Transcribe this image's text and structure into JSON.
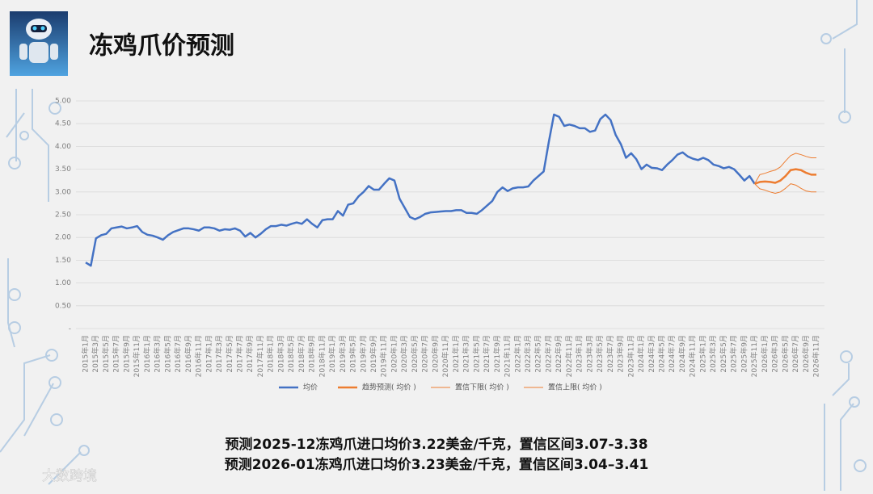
{
  "title": "冻鸡爪价预测",
  "notes": [
    "预测2025-12冻鸡爪进口均价3.22美金/千克，置信区间3.07-3.38",
    "预测2026-01冻鸡爪进口均价3.23美金/千克，置信区间3.04–3.41"
  ],
  "watermark": "大数跨境",
  "chart_data": {
    "type": "line",
    "categories": [
      "2015年1月",
      null,
      "2015年3月",
      null,
      "2015年5月",
      null,
      "2015年7月",
      null,
      "2015年9月",
      null,
      "2015年11月",
      null,
      "2016年1月",
      null,
      "2016年3月",
      null,
      "2016年5月",
      null,
      "2016年7月",
      null,
      "2016年9月",
      null,
      "2016年11月",
      null,
      "2017年1月",
      null,
      "2017年3月",
      null,
      "2017年5月",
      null,
      "2017年7月",
      null,
      "2017年9月",
      null,
      "2017年11月",
      null,
      "2018年1月",
      null,
      "2018年3月",
      null,
      "2018年5月",
      null,
      "2018年7月",
      null,
      "2018年9月",
      null,
      "2018年11月",
      null,
      "2019年1月",
      null,
      "2019年3月",
      null,
      "2019年5月",
      null,
      "2019年7月",
      null,
      "2019年9月",
      null,
      "2019年11月",
      null,
      "2020年1月",
      null,
      "2020年3月",
      null,
      "2020年5月",
      null,
      "2020年7月",
      null,
      "2020年9月",
      null,
      "2020年11月",
      null,
      "2021年1月",
      null,
      "2021年3月",
      null,
      "2021年5月",
      null,
      "2021年7月",
      null,
      "2021年9月",
      null,
      "2021年11月",
      null,
      "2022年1月",
      null,
      "2022年3月",
      null,
      "2022年5月",
      null,
      "2022年7月",
      null,
      "2022年9月",
      null,
      "2022年11月",
      null,
      "2023年1月",
      null,
      "2023年3月",
      null,
      "2023年5月",
      null,
      "2023年7月",
      null,
      "2023年9月",
      null,
      "2023年11月",
      null,
      "2024年1月",
      null,
      "2024年3月",
      null,
      "2024年5月",
      null,
      "2024年7月",
      null,
      "2024年9月",
      null,
      "2024年11月",
      null,
      "2025年1月",
      null,
      "2025年3月",
      null,
      "2025年5月",
      null,
      "2025年7月",
      null,
      "2025年9月",
      null,
      "2025年11月",
      null,
      "2026年1月",
      null,
      "2026年3月",
      null,
      "2026年5月",
      null,
      "2026年7月",
      null,
      "2026年9月",
      null,
      "2026年11月"
    ],
    "series": [
      {
        "name": "均价",
        "color": "#4472c4",
        "width": 2.5,
        "values": [
          1.45,
          1.38,
          1.98,
          2.05,
          2.08,
          2.2,
          2.22,
          2.24,
          2.2,
          2.22,
          2.25,
          2.12,
          2.06,
          2.04,
          2.0,
          1.95,
          2.05,
          2.12,
          2.16,
          2.2,
          2.2,
          2.18,
          2.15,
          2.22,
          2.22,
          2.2,
          2.15,
          2.18,
          2.17,
          2.2,
          2.15,
          2.02,
          2.1,
          2.0,
          2.08,
          2.18,
          2.25,
          2.25,
          2.28,
          2.26,
          2.3,
          2.33,
          2.3,
          2.4,
          2.3,
          2.22,
          2.38,
          2.4,
          2.4,
          2.58,
          2.48,
          2.72,
          2.75,
          2.9,
          3.0,
          3.13,
          3.05,
          3.05,
          3.18,
          3.3,
          3.25,
          2.85,
          2.65,
          2.45,
          2.4,
          2.45,
          2.52,
          2.55,
          2.56,
          2.57,
          2.58,
          2.58,
          2.6,
          2.6,
          2.54,
          2.54,
          2.52,
          2.6,
          2.7,
          2.8,
          3.0,
          3.1,
          3.02,
          3.08,
          3.1,
          3.1,
          3.12,
          3.25,
          3.35,
          3.45,
          4.1,
          4.7,
          4.65,
          4.45,
          4.48,
          4.45,
          4.4,
          4.4,
          4.32,
          4.35,
          4.6,
          4.7,
          4.58,
          4.25,
          4.05,
          3.75,
          3.85,
          3.72,
          3.5,
          3.6,
          3.53,
          3.52,
          3.48,
          3.6,
          3.7,
          3.82,
          3.87,
          3.78,
          3.73,
          3.7,
          3.75,
          3.7,
          3.6,
          3.57,
          3.52,
          3.55,
          3.5,
          3.38,
          3.25,
          3.35,
          3.18,
          null,
          null,
          null,
          null,
          null,
          null,
          null,
          null,
          null,
          null,
          null,
          null
        ]
      },
      {
        "name": "趋势预测( 均价 )",
        "color": "#ed7d31",
        "width": 2.5,
        "values": [
          null,
          null,
          null,
          null,
          null,
          null,
          null,
          null,
          null,
          null,
          null,
          null,
          null,
          null,
          null,
          null,
          null,
          null,
          null,
          null,
          null,
          null,
          null,
          null,
          null,
          null,
          null,
          null,
          null,
          null,
          null,
          null,
          null,
          null,
          null,
          null,
          null,
          null,
          null,
          null,
          null,
          null,
          null,
          null,
          null,
          null,
          null,
          null,
          null,
          null,
          null,
          null,
          null,
          null,
          null,
          null,
          null,
          null,
          null,
          null,
          null,
          null,
          null,
          null,
          null,
          null,
          null,
          null,
          null,
          null,
          null,
          null,
          null,
          null,
          null,
          null,
          null,
          null,
          null,
          null,
          null,
          null,
          null,
          null,
          null,
          null,
          null,
          null,
          null,
          null,
          null,
          null,
          null,
          null,
          null,
          null,
          null,
          null,
          null,
          null,
          null,
          null,
          null,
          null,
          null,
          null,
          null,
          null,
          null,
          null,
          null,
          null,
          null,
          null,
          null,
          null,
          null,
          null,
          null,
          null,
          null,
          null,
          null,
          null,
          null,
          null,
          null,
          null,
          null,
          null,
          3.18,
          3.22,
          3.23,
          3.22,
          3.2,
          3.25,
          3.35,
          3.48,
          3.5,
          3.48,
          3.42,
          3.38,
          3.38
        ]
      },
      {
        "name": "置信下限( 均价 )",
        "color": "#ed7d31",
        "width": 1,
        "values": [
          null,
          null,
          null,
          null,
          null,
          null,
          null,
          null,
          null,
          null,
          null,
          null,
          null,
          null,
          null,
          null,
          null,
          null,
          null,
          null,
          null,
          null,
          null,
          null,
          null,
          null,
          null,
          null,
          null,
          null,
          null,
          null,
          null,
          null,
          null,
          null,
          null,
          null,
          null,
          null,
          null,
          null,
          null,
          null,
          null,
          null,
          null,
          null,
          null,
          null,
          null,
          null,
          null,
          null,
          null,
          null,
          null,
          null,
          null,
          null,
          null,
          null,
          null,
          null,
          null,
          null,
          null,
          null,
          null,
          null,
          null,
          null,
          null,
          null,
          null,
          null,
          null,
          null,
          null,
          null,
          null,
          null,
          null,
          null,
          null,
          null,
          null,
          null,
          null,
          null,
          null,
          null,
          null,
          null,
          null,
          null,
          null,
          null,
          null,
          null,
          null,
          null,
          null,
          null,
          null,
          null,
          null,
          null,
          null,
          null,
          null,
          null,
          null,
          null,
          null,
          null,
          null,
          null,
          null,
          null,
          null,
          null,
          null,
          null,
          null,
          null,
          null,
          null,
          null,
          null,
          3.18,
          3.07,
          3.04,
          3.0,
          2.97,
          3.0,
          3.08,
          3.18,
          3.15,
          3.08,
          3.02,
          3.0,
          3.0
        ]
      },
      {
        "name": "置信上限( 均价 )",
        "color": "#ed7d31",
        "width": 1,
        "values": [
          null,
          null,
          null,
          null,
          null,
          null,
          null,
          null,
          null,
          null,
          null,
          null,
          null,
          null,
          null,
          null,
          null,
          null,
          null,
          null,
          null,
          null,
          null,
          null,
          null,
          null,
          null,
          null,
          null,
          null,
          null,
          null,
          null,
          null,
          null,
          null,
          null,
          null,
          null,
          null,
          null,
          null,
          null,
          null,
          null,
          null,
          null,
          null,
          null,
          null,
          null,
          null,
          null,
          null,
          null,
          null,
          null,
          null,
          null,
          null,
          null,
          null,
          null,
          null,
          null,
          null,
          null,
          null,
          null,
          null,
          null,
          null,
          null,
          null,
          null,
          null,
          null,
          null,
          null,
          null,
          null,
          null,
          null,
          null,
          null,
          null,
          null,
          null,
          null,
          null,
          null,
          null,
          null,
          null,
          null,
          null,
          null,
          null,
          null,
          null,
          null,
          null,
          null,
          null,
          null,
          null,
          null,
          null,
          null,
          null,
          null,
          null,
          null,
          null,
          null,
          null,
          null,
          null,
          null,
          null,
          null,
          null,
          null,
          null,
          null,
          null,
          null,
          null,
          null,
          null,
          3.18,
          3.38,
          3.41,
          3.45,
          3.48,
          3.55,
          3.68,
          3.8,
          3.85,
          3.82,
          3.78,
          3.75,
          3.75
        ]
      }
    ],
    "ylim": [
      0,
      5
    ],
    "yticks": [
      {
        "value": 0,
        "label": "-"
      },
      {
        "value": 0.5,
        "label": "0.50"
      },
      {
        "value": 1,
        "label": "1.00"
      },
      {
        "value": 1.5,
        "label": "1.50"
      },
      {
        "value": 2,
        "label": "2.00"
      },
      {
        "value": 2.5,
        "label": "2.50"
      },
      {
        "value": 3,
        "label": "3.00"
      },
      {
        "value": 3.5,
        "label": "3.50"
      },
      {
        "value": 4,
        "label": "4.00"
      },
      {
        "value": 4.5,
        "label": "4.50"
      },
      {
        "value": 5,
        "label": "5.00"
      }
    ],
    "grid": true,
    "legend": "bottom"
  }
}
